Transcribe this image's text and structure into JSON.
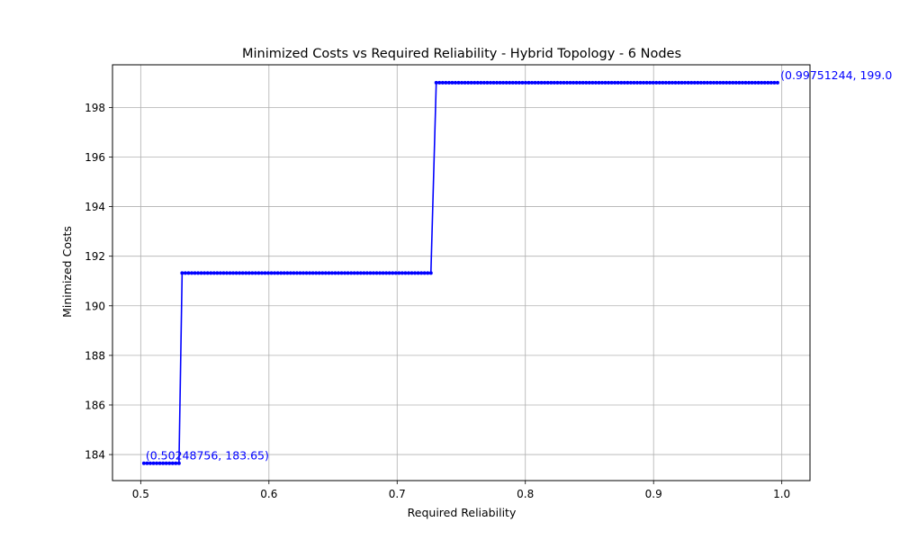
{
  "chart_data": {
    "type": "line",
    "title": "Minimized Costs vs Required Reliability - Hybrid Topology - 6 Nodes",
    "xlabel": "Required Reliability",
    "ylabel": "Minimized Costs",
    "xlim": [
      0.478,
      1.022
    ],
    "ylim": [
      182.95,
      199.72
    ],
    "xticks": [
      "0.5",
      "0.6",
      "0.7",
      "0.8",
      "0.9",
      "1.0"
    ],
    "yticks": [
      "184",
      "186",
      "188",
      "190",
      "192",
      "194",
      "196",
      "198"
    ],
    "grid": true,
    "line_color": "#0000ff",
    "marker": "dot",
    "segments": [
      {
        "x_start": 0.50248756,
        "x_end": 0.53,
        "y": 183.65
      },
      {
        "x_start": 0.5323,
        "x_end": 0.7285,
        "y": 191.32
      },
      {
        "x_start": 0.7305,
        "x_end": 0.99751244,
        "y": 199.0
      }
    ],
    "step_count": 3,
    "x_spacing": 0.0024876,
    "annotations": [
      {
        "text": "(0.50248756, 183.65)",
        "x": 0.50248756,
        "y": 183.65
      },
      {
        "text": "(0.99751244, 199.0",
        "x": 0.99751244,
        "y": 199.0
      }
    ]
  }
}
